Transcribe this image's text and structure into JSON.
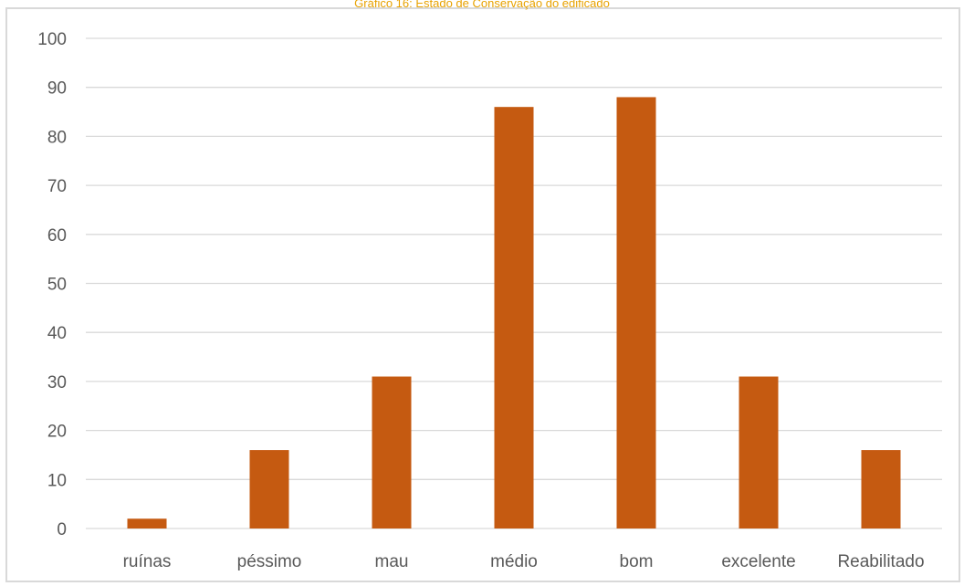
{
  "caption": "Gráfico 16: Estado de Conservação do edificado",
  "colors": {
    "bar": "#c55a11",
    "grid": "#d9d9d9",
    "text": "#595959",
    "caption": "#e8a200"
  },
  "chart_data": {
    "type": "bar",
    "title": "",
    "xlabel": "",
    "ylabel": "",
    "categories": [
      "ruínas",
      "péssimo",
      "mau",
      "médio",
      "bom",
      "excelente",
      "Reabilitado"
    ],
    "values": [
      2,
      16,
      31,
      86,
      88,
      31,
      16
    ],
    "ylim": [
      0,
      100
    ],
    "yticks": [
      "0",
      "10",
      "20",
      "30",
      "40",
      "50",
      "60",
      "70",
      "80",
      "90",
      "100"
    ],
    "grid": true,
    "legend": "none"
  }
}
